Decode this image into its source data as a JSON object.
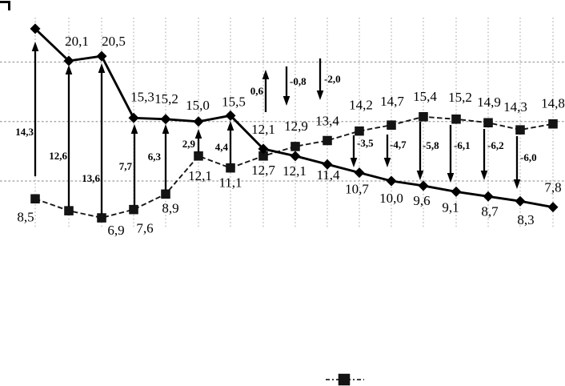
{
  "chart_data": {
    "type": "line",
    "title": "",
    "point_count": 17,
    "decimal_separator": ",",
    "series": [
      {
        "name": "square-series",
        "marker": "square",
        "line_style": "dashed",
        "values": [
          8.5,
          7.5,
          6.9,
          7.6,
          8.9,
          12.1,
          11.1,
          12.1,
          12.9,
          13.4,
          14.2,
          14.7,
          15.4,
          15.2,
          14.9,
          14.3,
          14.8
        ],
        "labels": [
          "8,5",
          null,
          "6,9",
          "7,6",
          "8,9",
          "12,1",
          "11,1",
          "12,1",
          "12,9",
          "13,4",
          "14,2",
          "14,7",
          "15,4",
          "15,2",
          "14,9",
          "14,3",
          "14,8"
        ],
        "label_side": [
          "below",
          "none",
          "below",
          "below",
          "below",
          "below",
          "below",
          "above",
          "above",
          "above",
          "above",
          "above",
          "above",
          "above",
          "above",
          "above",
          "above"
        ]
      },
      {
        "name": "diamond-series",
        "marker": "diamond",
        "line_style": "solid",
        "values": [
          22.8,
          20.1,
          20.5,
          15.3,
          15.2,
          15.0,
          15.5,
          12.7,
          12.1,
          11.4,
          10.7,
          10.0,
          9.6,
          9.1,
          8.7,
          8.3,
          7.8
        ],
        "labels": [
          null,
          "20,1",
          "20,5",
          "15,3",
          "15,2",
          "15,0",
          "15,5",
          "12,7",
          "12,1",
          "11,4",
          "10,7",
          "10,0",
          "9,6",
          "9,1",
          "8,7",
          "8,3",
          "7,8"
        ],
        "label_side": [
          "none",
          "above",
          "above",
          "above",
          "above",
          "above",
          "above",
          "below",
          "below",
          "below",
          "below",
          "below",
          "below",
          "below",
          "below",
          "below",
          "above"
        ]
      }
    ],
    "difference_arrows": {
      "description": "vertical arrows between the two series at each category",
      "labels": [
        "14,3",
        "12,6",
        "13,6",
        "7,7",
        "6,3",
        "2,9",
        "4,4",
        "0,6",
        "-0,8",
        "-2,0",
        "-3,5",
        "-4,7",
        "-5,8",
        "-6,1",
        "-6,2",
        "-6,0",
        null
      ],
      "values": [
        14.3,
        12.6,
        13.6,
        7.7,
        6.3,
        2.9,
        4.4,
        0.6,
        -0.8,
        -2.0,
        -3.5,
        -4.7,
        -5.8,
        -6.1,
        -6.2,
        -6.0,
        null
      ]
    },
    "axis": {
      "y_gridline_values": [
        20,
        15,
        10
      ],
      "tick_labels_visible": false,
      "axis_lines_visible": false
    },
    "grid": {
      "vertical": true,
      "horizontal": true,
      "style": "dotted"
    },
    "legend": {
      "position": "bottom-center",
      "entries": [
        {
          "series": "square-series",
          "marker": "square",
          "label": ""
        }
      ]
    },
    "colors": {
      "series": "#000000",
      "grid": "#a3a3a3",
      "background": "#ffffff"
    }
  }
}
